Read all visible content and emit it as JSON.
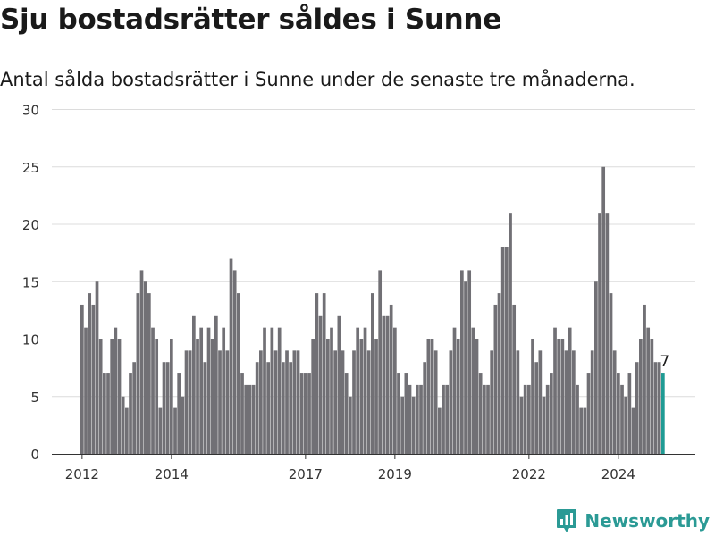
{
  "title": "Sju bostadsrätter såldes i Sunne",
  "subtitle": "Antal sålda bostadsrätter i Sunne under de senaste tre månaderna.",
  "brand": {
    "name": "Newsworthy",
    "logo_icon": "bar-chart-logo-icon",
    "color": "#2b9a95"
  },
  "chart_data": {
    "type": "bar",
    "title": "",
    "xlabel": "",
    "ylabel": "",
    "ylim": [
      0,
      30
    ],
    "yticks": [
      0,
      5,
      10,
      15,
      20,
      25,
      30
    ],
    "xticks": [
      "2012",
      "2014",
      "2017",
      "2019",
      "2022",
      "2024"
    ],
    "grid": true,
    "bar_color": "#717075",
    "highlight_color": "#1f9b94",
    "highlight_label": "7",
    "series": [
      {
        "values": [
          13,
          11,
          14,
          13,
          15,
          10,
          7,
          7,
          10,
          11,
          10,
          5,
          4,
          7,
          8,
          14,
          16,
          15,
          14,
          11,
          10,
          4,
          8,
          8,
          10,
          4,
          7,
          5,
          9,
          9,
          12,
          10,
          11,
          8,
          11,
          10,
          12,
          9,
          11,
          9,
          17,
          16,
          14,
          7,
          6,
          6,
          6,
          8,
          9,
          11,
          8,
          11,
          9,
          11,
          8,
          9,
          8,
          9,
          9,
          7,
          7,
          7,
          10,
          14,
          12,
          14,
          10,
          11,
          9,
          12,
          9,
          7,
          5,
          9,
          11,
          10,
          11,
          9,
          14,
          10,
          16,
          12,
          12,
          13,
          11,
          7,
          5,
          7,
          6,
          5,
          6,
          6,
          8,
          10,
          10,
          9,
          4,
          6,
          6,
          9,
          11,
          10,
          16,
          15,
          16,
          11,
          10,
          7,
          6,
          6,
          9,
          13,
          14,
          18,
          18,
          21,
          13,
          9,
          5,
          6,
          6,
          10,
          8,
          9,
          5,
          6,
          7,
          11,
          10,
          10,
          9,
          11,
          9,
          6,
          4,
          4,
          7,
          9,
          15,
          21,
          25,
          21,
          14,
          9,
          7,
          6,
          5,
          7,
          4,
          8,
          10,
          13,
          11,
          10,
          8,
          8,
          7
        ]
      }
    ]
  }
}
